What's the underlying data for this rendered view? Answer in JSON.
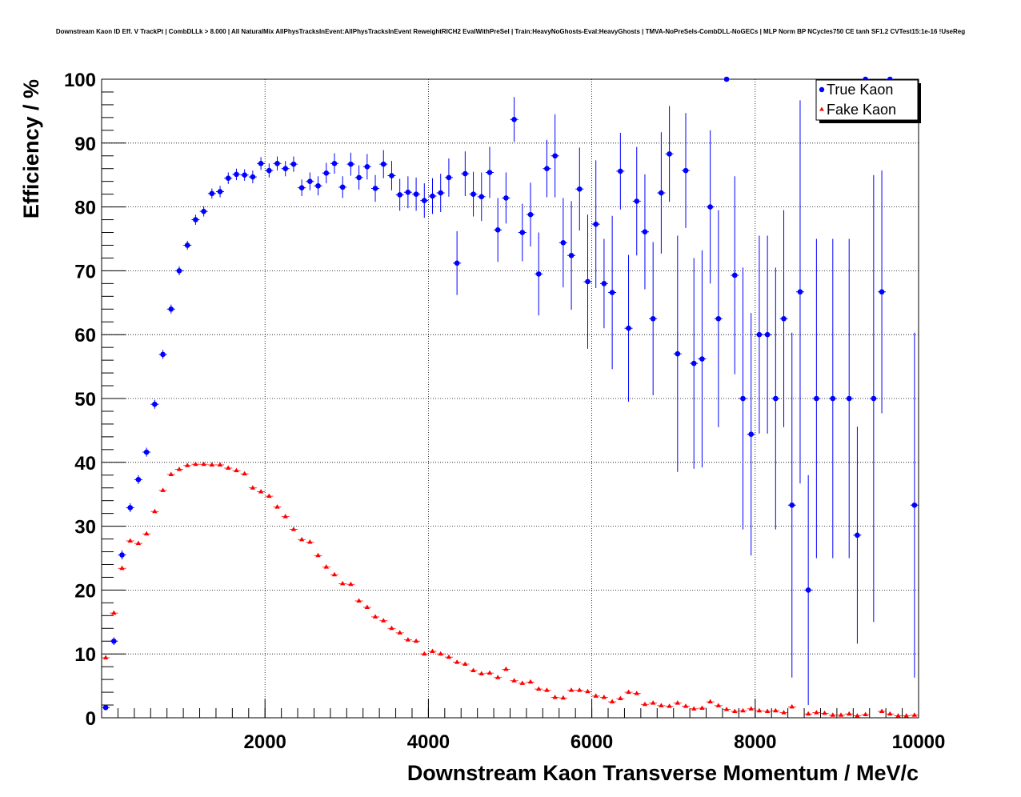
{
  "chart_data": {
    "type": "scatter",
    "title": "Downstream Kaon ID Eff. V TrackPt | CombDLLk > 8.000 | All NaturalMix AllPhysTracksInEvent:AllPhysTracksInEvent ReweightRICH2 EvalWithPreSel | Train:HeavyNoGhosts-Eval:HeavyGhosts | TMVA-NoPreSels-CombDLL-NoGECs | MLP Norm BP NCycles750 CE tanh SF1.2 CVTest15:1e-16 !UseReg",
    "xlabel": "Downstream Kaon Transverse Momentum / MeV/c",
    "ylabel": "Efficiency / %",
    "xlim": [
      0,
      10000
    ],
    "ylim": [
      0,
      100
    ],
    "x_ticks": [
      2000,
      4000,
      6000,
      8000,
      10000
    ],
    "x_tick_labels": [
      "2000",
      "4000",
      "6000",
      "8000",
      "10000"
    ],
    "y_ticks": [
      0,
      10,
      20,
      30,
      40,
      50,
      60,
      70,
      80,
      90,
      100
    ],
    "y_tick_labels": [
      "0",
      "10",
      "20",
      "30",
      "40",
      "50",
      "60",
      "70",
      "80",
      "90",
      "100"
    ],
    "grid": true,
    "legend_position": "top-right",
    "colors": {
      "true_kaon": "#0000ff",
      "fake_kaon": "#ff0000",
      "frame": "#000000"
    },
    "series": [
      {
        "name": "True Kaon",
        "marker": "circle",
        "points": [
          [
            50,
            1.6,
            0.3
          ],
          [
            150,
            12,
            0.6
          ],
          [
            250,
            25.5,
            0.7
          ],
          [
            350,
            32.9,
            0.7
          ],
          [
            450,
            37.3,
            0.7
          ],
          [
            550,
            41.6,
            0.7
          ],
          [
            650,
            49.1,
            0.7
          ],
          [
            750,
            56.9,
            0.7
          ],
          [
            850,
            64,
            0.7
          ],
          [
            950,
            70,
            0.7
          ],
          [
            1050,
            74,
            0.7
          ],
          [
            1150,
            78,
            0.8
          ],
          [
            1250,
            79.3,
            0.8
          ],
          [
            1350,
            82.1,
            0.8
          ],
          [
            1450,
            82.4,
            0.9
          ],
          [
            1550,
            84.5,
            0.9
          ],
          [
            1650,
            85.1,
            0.9
          ],
          [
            1750,
            85,
            0.9
          ],
          [
            1850,
            84.7,
            1
          ],
          [
            1950,
            86.8,
            1
          ],
          [
            2050,
            85.7,
            1.1
          ],
          [
            2150,
            86.8,
            1.1
          ],
          [
            2250,
            86,
            1.2
          ],
          [
            2350,
            86.7,
            1.2
          ],
          [
            2450,
            83,
            1.3
          ],
          [
            2550,
            84,
            1.4
          ],
          [
            2650,
            83.3,
            1.5
          ],
          [
            2750,
            85.3,
            1.6
          ],
          [
            2850,
            86.8,
            1.6
          ],
          [
            2950,
            83.1,
            1.7
          ],
          [
            3050,
            86.7,
            1.8
          ],
          [
            3150,
            84.6,
            1.9
          ],
          [
            3250,
            86.3,
            2
          ],
          [
            3350,
            82.9,
            2.1
          ],
          [
            3450,
            86.7,
            2.2
          ],
          [
            3550,
            84.9,
            2.3
          ],
          [
            3650,
            81.9,
            2.5
          ],
          [
            3750,
            82.3,
            2.5
          ],
          [
            3850,
            82,
            2.6
          ],
          [
            3950,
            81,
            2.7
          ],
          [
            4050,
            81.7,
            2.8
          ],
          [
            4150,
            82.2,
            3
          ],
          [
            4250,
            84.6,
            3
          ],
          [
            4350,
            71.2,
            5
          ],
          [
            4450,
            85.2,
            3.5
          ],
          [
            4550,
            82,
            3.5
          ],
          [
            4650,
            81.6,
            3.8
          ],
          [
            4750,
            85.4,
            4
          ],
          [
            4850,
            76.4,
            5
          ],
          [
            4950,
            81.4,
            4
          ],
          [
            5050,
            93.7,
            3.5
          ],
          [
            5150,
            76,
            4.5
          ],
          [
            5250,
            78.8,
            5
          ],
          [
            5350,
            69.5,
            6.5
          ],
          [
            5450,
            86,
            4.5
          ],
          [
            5550,
            88,
            6.5
          ],
          [
            5650,
            74.4,
            7
          ],
          [
            5750,
            72.4,
            8.5
          ],
          [
            5850,
            82.8,
            6.5
          ],
          [
            5950,
            68.3,
            10.5
          ],
          [
            6050,
            77.3,
            10
          ],
          [
            6150,
            68,
            7
          ],
          [
            6250,
            66.6,
            12
          ],
          [
            6350,
            85.6,
            6
          ],
          [
            6450,
            61,
            11.5
          ],
          [
            6550,
            80.9,
            8.5
          ],
          [
            6650,
            76.1,
            9
          ],
          [
            6750,
            62.5,
            12
          ],
          [
            6850,
            82.2,
            9.5
          ],
          [
            6950,
            88.3,
            7.5
          ],
          [
            7050,
            57,
            18.5
          ],
          [
            7150,
            85.7,
            9
          ],
          [
            7250,
            55.5,
            16.5
          ],
          [
            7350,
            56.2,
            17
          ],
          [
            7450,
            80,
            12
          ],
          [
            7550,
            62.5,
            17
          ],
          [
            7650,
            100,
            0
          ],
          [
            7750,
            69.3,
            15.5
          ],
          [
            7850,
            50,
            20.5
          ],
          [
            7950,
            44.4,
            19
          ],
          [
            8050,
            60,
            15.5
          ],
          [
            8150,
            60,
            15.5
          ],
          [
            8250,
            50,
            20.5
          ],
          [
            8350,
            62.5,
            17
          ],
          [
            8450,
            33.3,
            27
          ],
          [
            8550,
            66.7,
            30
          ],
          [
            8650,
            20,
            18
          ],
          [
            8750,
            50,
            25
          ],
          [
            8950,
            50,
            25
          ],
          [
            9150,
            50,
            25
          ],
          [
            9250,
            28.6,
            17
          ],
          [
            9350,
            100,
            0
          ],
          [
            9450,
            50,
            35
          ],
          [
            9550,
            66.7,
            19
          ],
          [
            9650,
            100,
            0
          ],
          [
            9950,
            33.3,
            27
          ]
        ]
      },
      {
        "name": "Fake Kaon",
        "marker": "triangle",
        "points": [
          [
            50,
            9.4
          ],
          [
            150,
            16.4
          ],
          [
            250,
            23.4
          ],
          [
            350,
            27.7
          ],
          [
            450,
            27.3
          ],
          [
            550,
            28.8
          ],
          [
            650,
            32.3
          ],
          [
            750,
            35.6
          ],
          [
            850,
            38.1
          ],
          [
            950,
            38.9
          ],
          [
            1050,
            39.5
          ],
          [
            1150,
            39.7
          ],
          [
            1250,
            39.7
          ],
          [
            1350,
            39.6
          ],
          [
            1450,
            39.6
          ],
          [
            1550,
            39.1
          ],
          [
            1650,
            38.7
          ],
          [
            1750,
            38.2
          ],
          [
            1850,
            36
          ],
          [
            1950,
            35.4
          ],
          [
            2050,
            34.7
          ],
          [
            2150,
            33
          ],
          [
            2250,
            31.5
          ],
          [
            2350,
            29.5
          ],
          [
            2450,
            27.9
          ],
          [
            2550,
            27.5
          ],
          [
            2650,
            25.4
          ],
          [
            2750,
            23.6
          ],
          [
            2850,
            22.4
          ],
          [
            2950,
            21
          ],
          [
            3050,
            20.9
          ],
          [
            3150,
            18.3
          ],
          [
            3250,
            17.3
          ],
          [
            3350,
            15.8
          ],
          [
            3450,
            15.2
          ],
          [
            3550,
            14
          ],
          [
            3650,
            13.3
          ],
          [
            3750,
            12.2
          ],
          [
            3850,
            12
          ],
          [
            3950,
            10
          ],
          [
            4050,
            10.4
          ],
          [
            4150,
            10
          ],
          [
            4250,
            9.5
          ],
          [
            4350,
            8.7
          ],
          [
            4450,
            8.4
          ],
          [
            4550,
            7.4
          ],
          [
            4650,
            6.9
          ],
          [
            4750,
            7
          ],
          [
            4850,
            6.3
          ],
          [
            4950,
            7.6
          ],
          [
            5050,
            5.8
          ],
          [
            5150,
            5.4
          ],
          [
            5250,
            5.6
          ],
          [
            5350,
            4.5
          ],
          [
            5450,
            4.3
          ],
          [
            5550,
            3.2
          ],
          [
            5650,
            3.1
          ],
          [
            5750,
            4.3
          ],
          [
            5850,
            4.3
          ],
          [
            5950,
            4.1
          ],
          [
            6050,
            3.4
          ],
          [
            6150,
            3.2
          ],
          [
            6250,
            2.5
          ],
          [
            6350,
            3
          ],
          [
            6450,
            4
          ],
          [
            6550,
            3.8
          ],
          [
            6650,
            2.1
          ],
          [
            6750,
            2.3
          ],
          [
            6850,
            1.9
          ],
          [
            6950,
            1.8
          ],
          [
            7050,
            2.3
          ],
          [
            7150,
            1.8
          ],
          [
            7250,
            1.4
          ],
          [
            7350,
            1.5
          ],
          [
            7450,
            2.5
          ],
          [
            7550,
            1.9
          ],
          [
            7650,
            1.3
          ],
          [
            7750,
            1
          ],
          [
            7850,
            1.1
          ],
          [
            7950,
            1.4
          ],
          [
            8050,
            1.1
          ],
          [
            8150,
            1
          ],
          [
            8250,
            1.1
          ],
          [
            8350,
            0.8
          ],
          [
            8450,
            1.7
          ],
          [
            8650,
            0.6
          ],
          [
            8750,
            0.8
          ],
          [
            8850,
            0.7
          ],
          [
            8950,
            0.4
          ],
          [
            9050,
            0.4
          ],
          [
            9150,
            0.6
          ],
          [
            9250,
            0.3
          ],
          [
            9350,
            0.5
          ],
          [
            9550,
            1
          ],
          [
            9650,
            0.6
          ],
          [
            9750,
            0.3
          ],
          [
            9850,
            0.3
          ],
          [
            9950,
            0.4
          ]
        ]
      }
    ]
  },
  "legend": {
    "items": [
      {
        "label": "True Kaon",
        "marker": "circle",
        "color": "#0000ff"
      },
      {
        "label": "Fake Kaon",
        "marker": "triangle",
        "color": "#ff0000"
      }
    ]
  }
}
